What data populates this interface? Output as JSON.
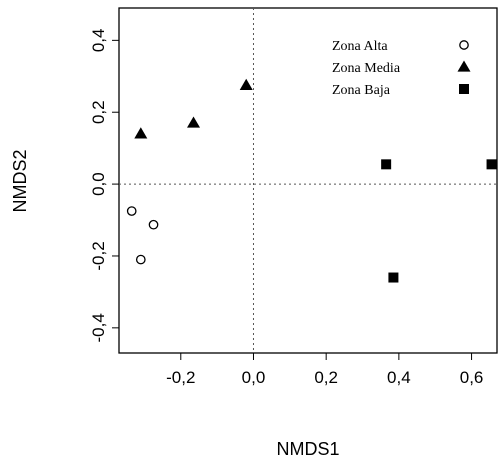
{
  "chart_data": {
    "type": "scatter",
    "xlabel": "NMDS1",
    "ylabel": "NMDS2",
    "xlim": [
      -0.37,
      0.67
    ],
    "ylim": [
      -0.47,
      0.49
    ],
    "x_ticks": [
      -0.2,
      0.0,
      0.2,
      0.4,
      0.6
    ],
    "x_tick_labels": [
      "-0,2",
      "0,0",
      "0,2",
      "0,4",
      "0,6"
    ],
    "y_ticks": [
      -0.4,
      -0.2,
      0.0,
      0.2,
      0.4
    ],
    "y_tick_labels": [
      "-0,4",
      "-0,2",
      "0,0",
      "0,2",
      "0,4"
    ],
    "reference_lines": {
      "x": 0.0,
      "y": 0.0,
      "style": "dotted"
    },
    "grid": false,
    "legend": {
      "placement": "top-right"
    },
    "series": [
      {
        "name": "Zona Alta",
        "marker": "open-circle",
        "points": [
          {
            "x": -0.335,
            "y": -0.075
          },
          {
            "x": -0.275,
            "y": -0.113
          },
          {
            "x": -0.31,
            "y": -0.21
          }
        ]
      },
      {
        "name": "Zona Media",
        "marker": "filled-triangle",
        "points": [
          {
            "x": -0.31,
            "y": 0.14
          },
          {
            "x": -0.165,
            "y": 0.17
          },
          {
            "x": -0.02,
            "y": 0.275
          }
        ]
      },
      {
        "name": "Zona Baja",
        "marker": "filled-square",
        "points": [
          {
            "x": 0.365,
            "y": 0.055
          },
          {
            "x": 0.655,
            "y": 0.055
          },
          {
            "x": 0.385,
            "y": -0.26
          }
        ]
      }
    ]
  }
}
